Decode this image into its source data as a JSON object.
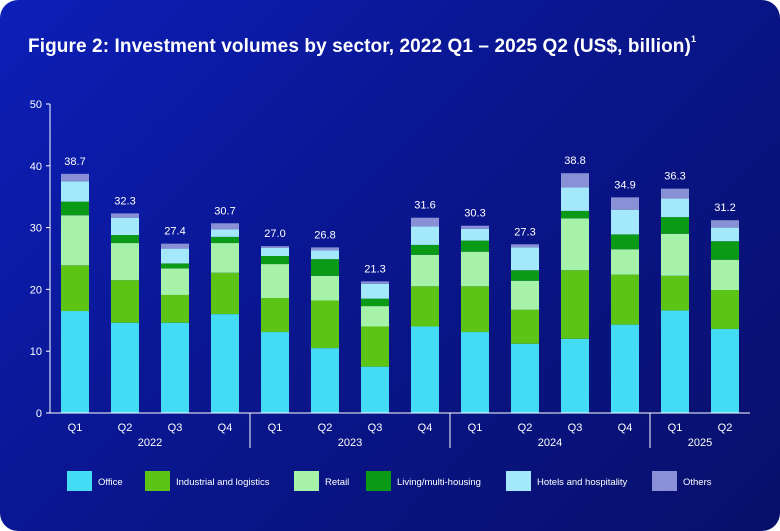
{
  "title": "Figure 2: Investment volumes by sector, 2022 Q1 – 2025 Q2 (US$, billion)",
  "title_note": "1",
  "colors": {
    "Office": "#44dcf4",
    "Industrial and logistics": "#5cc414",
    "Retail": "#a6f2a8",
    "Living/multi-housing": "#0b9a16",
    "Hotels and hospitality": "#a4e8fc",
    "Others": "#8a90d6"
  },
  "chart_data": {
    "type": "bar",
    "stacked": true,
    "title": "Figure 2: Investment volumes by sector, 2022 Q1 – 2025 Q2 (US$, billion)",
    "xlabel": "",
    "ylabel": "",
    "ylim": [
      0,
      50
    ],
    "yticks": [
      0,
      10,
      20,
      30,
      40,
      50
    ],
    "categories": [
      "Q1",
      "Q2",
      "Q3",
      "Q4",
      "Q1",
      "Q2",
      "Q3",
      "Q4",
      "Q1",
      "Q2",
      "Q3",
      "Q4",
      "Q1",
      "Q2"
    ],
    "years": [
      {
        "label": "2022",
        "start": 0,
        "end": 3
      },
      {
        "label": "2023",
        "start": 4,
        "end": 7
      },
      {
        "label": "2024",
        "start": 8,
        "end": 11
      },
      {
        "label": "2025",
        "start": 12,
        "end": 13
      }
    ],
    "totals": [
      "38.7",
      "32.3",
      "27.4",
      "30.7",
      "27.0",
      "26.8",
      "21.3",
      "31.6",
      "30.3",
      "27.3",
      "38.8",
      "34.9",
      "36.3",
      "31.2"
    ],
    "series": [
      {
        "name": "Office",
        "values": [
          16.5,
          14.6,
          14.6,
          16.0,
          13.1,
          10.5,
          7.5,
          14.0,
          13.1,
          11.2,
          12.0,
          14.3,
          16.6,
          13.6
        ]
      },
      {
        "name": "Industrial and logistics",
        "values": [
          7.4,
          6.9,
          4.5,
          6.7,
          5.5,
          7.7,
          6.5,
          6.5,
          7.4,
          5.5,
          11.1,
          8.1,
          5.6,
          6.3
        ]
      },
      {
        "name": "Retail",
        "values": [
          8.1,
          6.0,
          4.3,
          4.8,
          5.5,
          4.0,
          3.3,
          5.1,
          5.6,
          4.7,
          8.4,
          4.1,
          6.8,
          4.9
        ]
      },
      {
        "name": "Living/multi-housing",
        "values": [
          2.2,
          1.3,
          0.8,
          1.0,
          1.3,
          2.7,
          1.2,
          1.6,
          1.8,
          1.7,
          1.2,
          2.4,
          2.7,
          3.0
        ]
      },
      {
        "name": "Hotels and hospitality",
        "values": [
          3.3,
          2.8,
          2.4,
          1.2,
          1.3,
          1.4,
          2.4,
          3.0,
          1.9,
          3.7,
          3.8,
          4.0,
          3.0,
          2.2
        ]
      },
      {
        "name": "Others",
        "values": [
          1.2,
          0.7,
          0.8,
          1.0,
          0.3,
          0.5,
          0.4,
          1.4,
          0.5,
          0.5,
          2.3,
          2.0,
          1.6,
          1.2
        ]
      }
    ],
    "legend_position": "bottom",
    "grid": false
  }
}
